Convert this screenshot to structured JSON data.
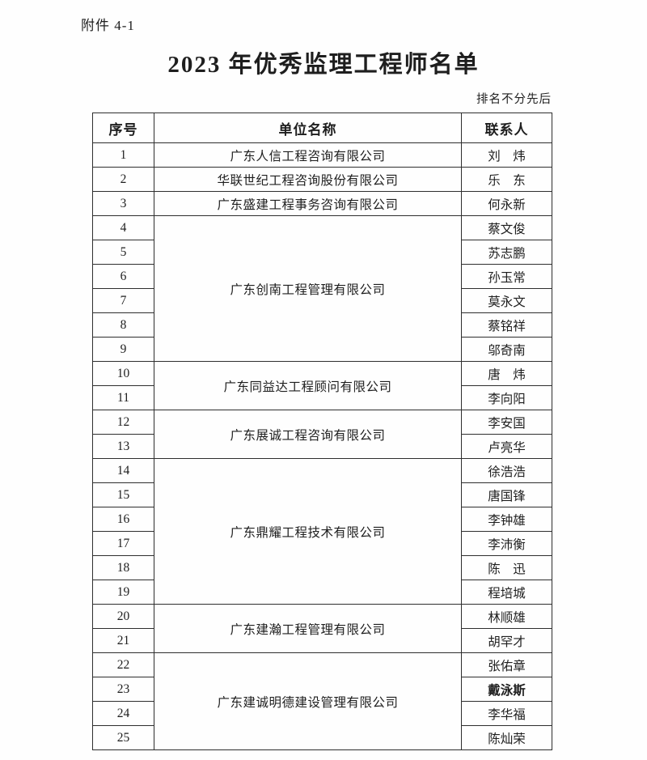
{
  "page": {
    "attachment_label": "附件 4-1",
    "title": "2023 年优秀监理工程师名单",
    "note": "排名不分先后"
  },
  "table": {
    "headers": [
      "序号",
      "单位名称",
      "联系人"
    ],
    "groups": [
      {
        "company": "广东人信工程咨询有限公司",
        "entries": [
          {
            "no": "1",
            "contact": "刘　炜"
          }
        ]
      },
      {
        "company": "华联世纪工程咨询股份有限公司",
        "entries": [
          {
            "no": "2",
            "contact": "乐　东"
          }
        ]
      },
      {
        "company": "广东盛建工程事务咨询有限公司",
        "entries": [
          {
            "no": "3",
            "contact": "何永新"
          }
        ]
      },
      {
        "company": "广东创南工程管理有限公司",
        "entries": [
          {
            "no": "4",
            "contact": "蔡文俊"
          },
          {
            "no": "5",
            "contact": "苏志鹏"
          },
          {
            "no": "6",
            "contact": "孙玉常"
          },
          {
            "no": "7",
            "contact": "莫永文"
          },
          {
            "no": "8",
            "contact": "蔡铭祥"
          },
          {
            "no": "9",
            "contact": "邬奇南"
          }
        ]
      },
      {
        "company": "广东同益达工程顾问有限公司",
        "entries": [
          {
            "no": "10",
            "contact": "唐　炜"
          },
          {
            "no": "11",
            "contact": "李向阳"
          }
        ]
      },
      {
        "company": "广东展诚工程咨询有限公司",
        "entries": [
          {
            "no": "12",
            "contact": "李安国"
          },
          {
            "no": "13",
            "contact": "卢亮华"
          }
        ]
      },
      {
        "company": "广东鼎耀工程技术有限公司",
        "entries": [
          {
            "no": "14",
            "contact": "徐浩浩"
          },
          {
            "no": "15",
            "contact": "唐国锋"
          },
          {
            "no": "16",
            "contact": "李钟雄"
          },
          {
            "no": "17",
            "contact": "李沛衡"
          },
          {
            "no": "18",
            "contact": "陈　迅"
          },
          {
            "no": "19",
            "contact": "程培城"
          }
        ]
      },
      {
        "company": "广东建瀚工程管理有限公司",
        "entries": [
          {
            "no": "20",
            "contact": "林顺雄"
          },
          {
            "no": "21",
            "contact": "胡罕才"
          }
        ]
      },
      {
        "company": "广东建诚明德建设管理有限公司",
        "entries": [
          {
            "no": "22",
            "contact": "张佑章"
          },
          {
            "no": "23",
            "contact": "戴泳斯",
            "bold": true
          },
          {
            "no": "24",
            "contact": "李华福"
          },
          {
            "no": "25",
            "contact": "陈灿荣"
          }
        ]
      }
    ]
  }
}
